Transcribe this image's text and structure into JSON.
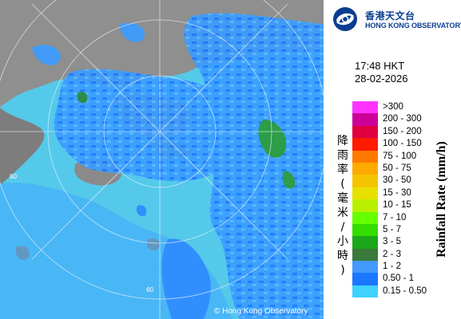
{
  "logo": {
    "name_zh": "香港天文台",
    "name_en": "HONG KONG OBSERVATORY",
    "icon": "hko-logo-icon"
  },
  "timestamp": {
    "time": "17:48 HKT",
    "date": "28-02-2026"
  },
  "legend": {
    "title_en": "Rainfall Rate (mm/h)",
    "title_zh": "降雨率(毫米/小時)",
    "items": [
      {
        "label": ">300",
        "color": "#ff33ff"
      },
      {
        "label": "200 - 300",
        "color": "#cc0099"
      },
      {
        "label": "150 - 200",
        "color": "#e00040"
      },
      {
        "label": "100 - 150",
        "color": "#ff1a00"
      },
      {
        "label": "75 - 100",
        "color": "#ff7a00"
      },
      {
        "label": "50 - 75",
        "color": "#ffaa00"
      },
      {
        "label": "30 - 50",
        "color": "#f5c400"
      },
      {
        "label": "15 - 30",
        "color": "#e8e000"
      },
      {
        "label": "10 - 15",
        "color": "#b8f000"
      },
      {
        "label": "7 - 10",
        "color": "#66ff00"
      },
      {
        "label": "5 - 7",
        "color": "#33dd00"
      },
      {
        "label": "3 - 5",
        "color": "#1aa81a"
      },
      {
        "label": "2 - 3",
        "color": "#3a7a3a"
      },
      {
        "label": "1 - 2",
        "color": "#4499ff"
      },
      {
        "label": "0.50 - 1",
        "color": "#1a77ff"
      },
      {
        "label": "0.15 - 0.50",
        "color": "#3fd2ff"
      }
    ]
  },
  "map": {
    "range_rings_labels": [
      "60",
      "60"
    ],
    "sea_color": "#52c8e8",
    "land_color": "#8c8c8c"
  },
  "copyright": "© Hong Kong Observatory"
}
